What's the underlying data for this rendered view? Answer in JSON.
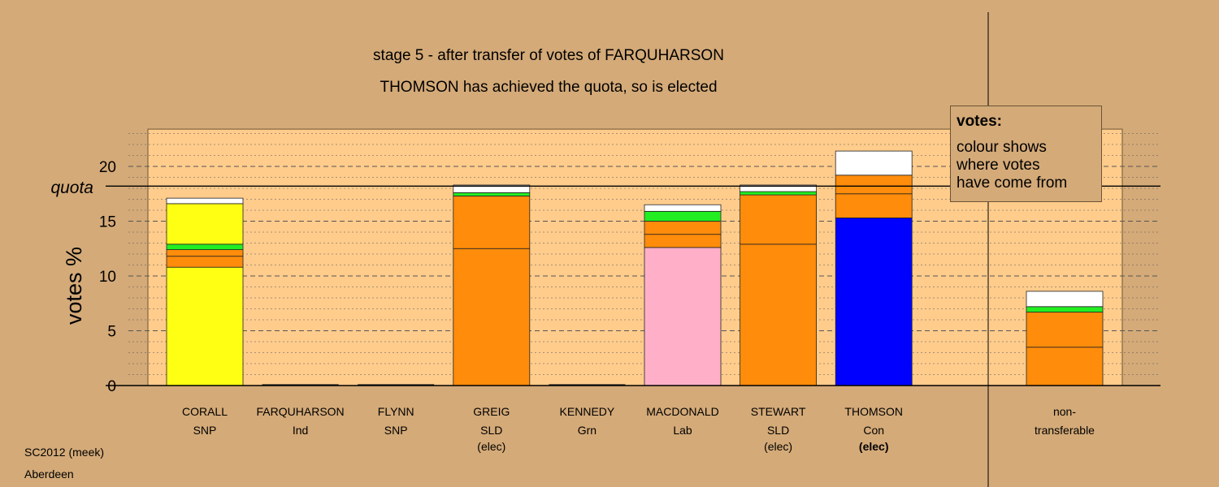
{
  "chart_data": {
    "type": "bar",
    "stacked": true,
    "title": "stage 5 - after transfer of votes of FARQUHARSON",
    "subtitle": "THOMSON has achieved the quota, so is elected",
    "ylabel": "votes %",
    "ylim": [
      0,
      23.4
    ],
    "yticks": [
      0,
      5,
      10,
      15,
      20
    ],
    "quota": 18.2,
    "quota_label": "quota",
    "grid": true,
    "colors": {
      "snp": "#ffff14",
      "sld": "#ff8c0a",
      "lab": "#ffb0c8",
      "con": "#0000ff",
      "grn": "#22ee22",
      "other": "#ffffff"
    },
    "candidates": [
      {
        "name": "CORALL",
        "party": "SNP",
        "status": "",
        "segments": [
          {
            "color": "snp",
            "value": 10.8
          },
          {
            "color": "sld",
            "value": 1.0
          },
          {
            "color": "sld",
            "value": 0.6
          },
          {
            "color": "grn",
            "value": 0.5
          },
          {
            "color": "snp",
            "value": 3.7
          },
          {
            "color": "other",
            "value": 0.5
          }
        ]
      },
      {
        "name": "FARQUHARSON",
        "party": "Ind",
        "status": "",
        "segments": []
      },
      {
        "name": "FLYNN",
        "party": "SNP",
        "status": "",
        "segments": []
      },
      {
        "name": "GREIG",
        "party": "SLD",
        "status": "(elec)",
        "segments": [
          {
            "color": "sld",
            "value": 12.5
          },
          {
            "color": "sld",
            "value": 4.8
          },
          {
            "color": "grn",
            "value": 0.3
          },
          {
            "color": "other",
            "value": 0.7
          }
        ]
      },
      {
        "name": "KENNEDY",
        "party": "Grn",
        "status": "",
        "segments": []
      },
      {
        "name": "MACDONALD",
        "party": "Lab",
        "status": "",
        "segments": [
          {
            "color": "lab",
            "value": 12.6
          },
          {
            "color": "sld",
            "value": 1.2
          },
          {
            "color": "sld",
            "value": 1.2
          },
          {
            "color": "grn",
            "value": 0.9
          },
          {
            "color": "other",
            "value": 0.6
          }
        ]
      },
      {
        "name": "STEWART",
        "party": "SLD",
        "status": "(elec)",
        "segments": [
          {
            "color": "sld",
            "value": 12.9
          },
          {
            "color": "sld",
            "value": 4.5
          },
          {
            "color": "grn",
            "value": 0.3
          },
          {
            "color": "other",
            "value": 0.6
          }
        ]
      },
      {
        "name": "THOMSON",
        "party": "Con",
        "status": "(elec)",
        "status_bold": true,
        "segments": [
          {
            "color": "con",
            "value": 15.3
          },
          {
            "color": "sld",
            "value": 2.2
          },
          {
            "color": "sld",
            "value": 1.7
          },
          {
            "color": "other",
            "value": 2.2
          }
        ]
      }
    ],
    "nontransferable": {
      "name": "non-",
      "party": "transferable",
      "segments": [
        {
          "color": "sld",
          "value": 3.5
        },
        {
          "color": "sld",
          "value": 3.2
        },
        {
          "color": "grn",
          "value": 0.5
        },
        {
          "color": "other",
          "value": 1.4
        }
      ]
    }
  },
  "legend": {
    "title": "votes:",
    "lines": [
      "colour shows",
      "where votes",
      "have come from"
    ]
  },
  "footer": {
    "line1": "SC2012 (meek)",
    "line2": "Aberdeen"
  }
}
